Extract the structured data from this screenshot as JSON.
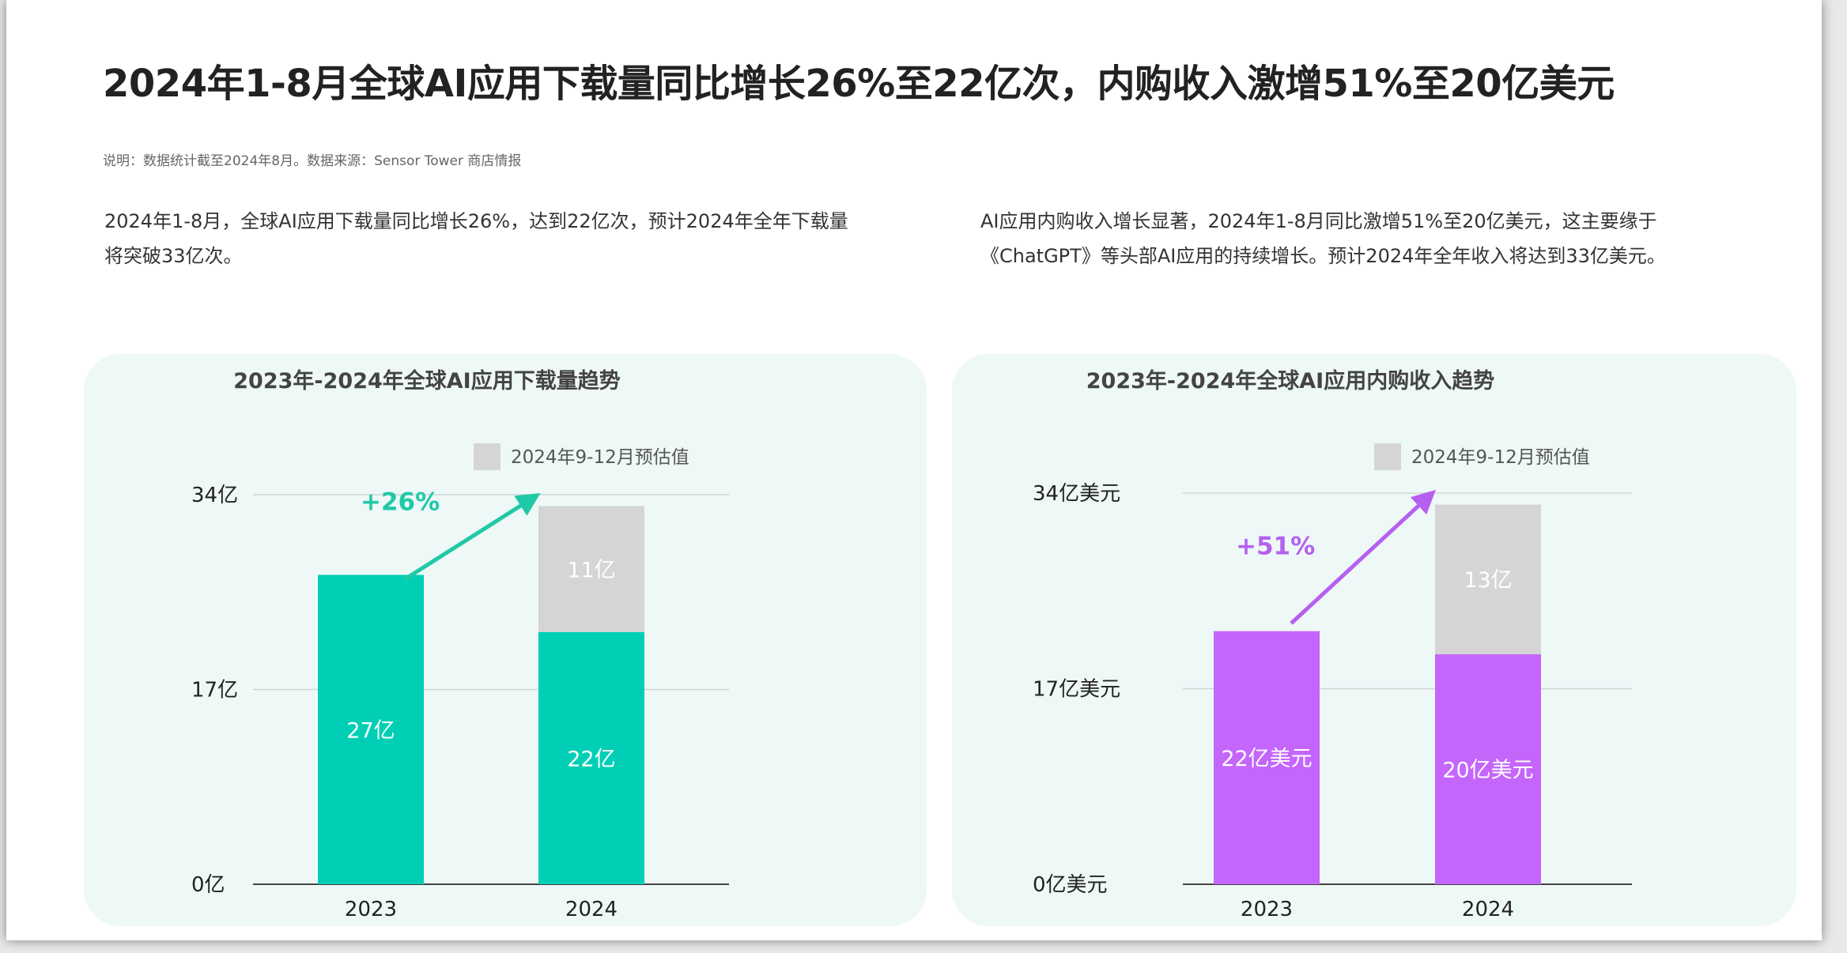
{
  "title": "2024年1-8月全球AI应用下载量同比增长26%至22亿次，内购收入激增51%至20亿美元",
  "note": "说明：数据统计截至2024年8月。数据来源：Sensor Tower 商店情报",
  "summary_left": [
    "2024年1-8月，全球AI应用下载量同比增长26%，达到22亿次，预计2024年全年下载量",
    "将突破33亿次。"
  ],
  "summary_right": [
    "AI应用内购收入增长显著，2024年1-8月同比激增51%至20亿美元，这主要缘于",
    "《ChatGPT》等头部AI应用的持续增长。预计2024年全年收入将达到33亿美元。"
  ],
  "chart_data": [
    {
      "type": "bar",
      "stacked": true,
      "title": "2023年-2024年全球AI应用下载量趋势",
      "categories": [
        "2023",
        "2024"
      ],
      "series": [
        {
          "name": "",
          "values": [
            27,
            22
          ],
          "labels": [
            "27亿",
            "22亿"
          ],
          "color": "#00cfb5"
        },
        {
          "name": "2024年9-12月预估值",
          "values": [
            0,
            11
          ],
          "labels": [
            "",
            "11亿"
          ],
          "color": "#d5d5d5"
        }
      ],
      "yticks": [
        0,
        17,
        34
      ],
      "ytick_labels": [
        "0亿",
        "17亿",
        "34亿"
      ],
      "ylim": [
        0,
        34
      ],
      "grid": true,
      "legend": "top-right",
      "annotation": {
        "text": "+26%",
        "color": "#20c9a6"
      }
    },
    {
      "type": "bar",
      "stacked": true,
      "title": "2023年-2024年全球AI应用内购收入趋势",
      "categories": [
        "2023",
        "2024"
      ],
      "series": [
        {
          "name": "",
          "values": [
            22,
            20
          ],
          "labels": [
            "22亿美元",
            "20亿美元"
          ],
          "color": "#c466fb"
        },
        {
          "name": "2024年9-12月预估值",
          "values": [
            0,
            13
          ],
          "labels": [
            "",
            "13亿"
          ],
          "color": "#d5d5d5"
        }
      ],
      "yticks": [
        0,
        17,
        34
      ],
      "ytick_labels": [
        "0亿美元",
        "17亿美元",
        "34亿美元"
      ],
      "ylim": [
        0,
        34
      ],
      "grid": true,
      "legend": "top-right",
      "annotation": {
        "text": "+51%",
        "color": "#b560f0"
      }
    }
  ]
}
